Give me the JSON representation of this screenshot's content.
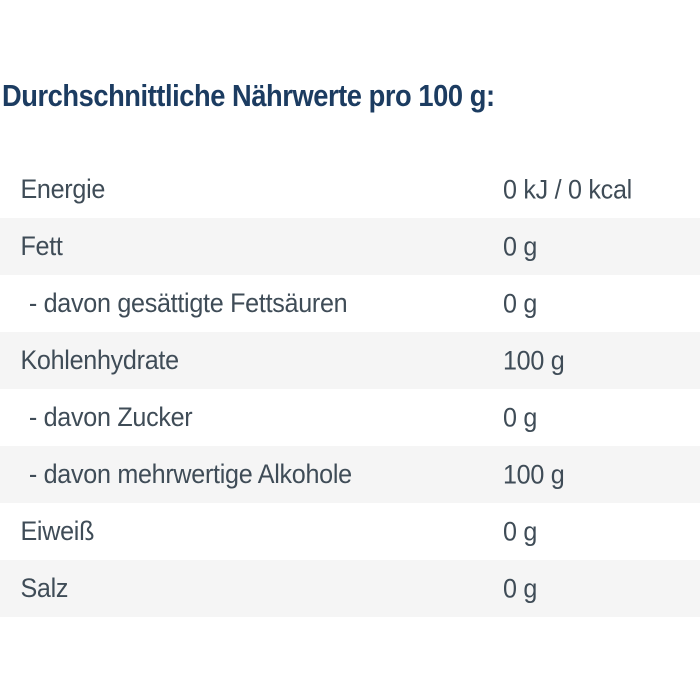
{
  "title": {
    "text": "Durchschnittliche Nährwerte pro 100 g:",
    "color": "#1c3c61"
  },
  "nutrition_table": {
    "basis": "pro 100 g",
    "text_color": "#3f4c57",
    "stripe_color": "#f5f5f5",
    "rows": [
      {
        "label": "Energie",
        "value": "0 kJ / 0 kcal"
      },
      {
        "label": "Fett",
        "value": "0 g"
      },
      {
        "label": "- davon gesättigte Fettsäuren",
        "value": "0 g"
      },
      {
        "label": "Kohlenhydrate",
        "value": "100 g"
      },
      {
        "label": "- davon Zucker",
        "value": "0 g"
      },
      {
        "label": "- davon mehrwertige Alkohole",
        "value": "100 g"
      },
      {
        "label": "Eiweiß",
        "value": "0 g"
      },
      {
        "label": "Salz",
        "value": "0 g"
      }
    ]
  }
}
